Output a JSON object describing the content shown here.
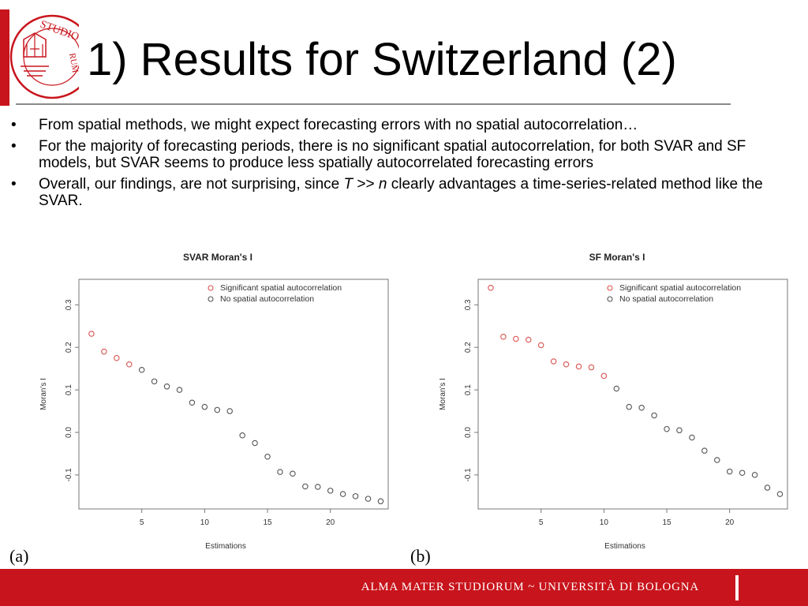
{
  "slide": {
    "title": "1) Results for Switzerland (2)",
    "bullets": [
      {
        "text": "From spatial methods, we might expect forecasting errors with no spatial autocorrelation…"
      },
      {
        "text": "For the majority of forecasting periods, there is no significant spatial autocorrelation, for both SVAR and SF models, but SVAR seems to produce less spatially autocorrelated forecasting errors"
      },
      {
        "pre": "Overall, our findings, are not surprising, since ",
        "t": "T",
        "op": " >> ",
        "n": "n",
        "post": " clearly advantages a time-series-related method like the SVAR."
      }
    ],
    "bullet_symbol": "•"
  },
  "logo": {
    "lettering": "SIGILLUM DI BOLOGNA STUDIORUM",
    "colors": {
      "primary": "#c8141c"
    }
  },
  "footer": {
    "text": "ALMA MATER STUDIORUM ~ UNIVERSITÀ DI BOLOGNA",
    "color": "#c8141c"
  },
  "panel_labels": [
    "(a)",
    "(b)"
  ],
  "chart_data": [
    {
      "type": "scatter",
      "title": "SVAR Moran's I",
      "xlabel": "Estimations",
      "ylabel": "Moran's I",
      "xlim": [
        0,
        24.6
      ],
      "ylim": [
        -0.18,
        0.36
      ],
      "xticks": [
        5,
        10,
        15,
        20
      ],
      "yticks": [
        -0.1,
        0.0,
        0.1,
        0.2,
        0.3
      ],
      "grid": false,
      "legend_position": "top-right",
      "series": [
        {
          "name": "Significant spatial autocorrelation",
          "color": "#d9534f",
          "x": [
            1,
            2,
            3,
            4
          ],
          "y": [
            0.232,
            0.19,
            0.175,
            0.16
          ]
        },
        {
          "name": "No spatial autocorrelation",
          "color": "#555555",
          "x": [
            5,
            6,
            7,
            8,
            9,
            10,
            11,
            12,
            13,
            14,
            15,
            16,
            17,
            18,
            19,
            20,
            21,
            22,
            23,
            24
          ],
          "y": [
            0.147,
            0.12,
            0.108,
            0.1,
            0.07,
            0.06,
            0.053,
            0.05,
            -0.007,
            -0.025,
            -0.057,
            -0.093,
            -0.097,
            -0.127,
            -0.128,
            -0.137,
            -0.145,
            -0.15,
            -0.156,
            -0.162
          ]
        }
      ]
    },
    {
      "type": "scatter",
      "title": "SF Moran's I",
      "xlabel": "Estimations",
      "ylabel": "Moran's I",
      "xlim": [
        0,
        24.6
      ],
      "ylim": [
        -0.18,
        0.36
      ],
      "xticks": [
        5,
        10,
        15,
        20
      ],
      "yticks": [
        -0.1,
        0.0,
        0.1,
        0.2,
        0.3
      ],
      "grid": false,
      "legend_position": "top-right",
      "series": [
        {
          "name": "Significant spatial autocorrelation",
          "color": "#d9534f",
          "x": [
            1,
            2,
            3,
            4,
            5,
            6,
            7,
            8,
            9,
            10
          ],
          "y": [
            0.34,
            0.225,
            0.22,
            0.218,
            0.205,
            0.167,
            0.16,
            0.155,
            0.153,
            0.133
          ]
        },
        {
          "name": "No spatial autocorrelation",
          "color": "#555555",
          "x": [
            11,
            12,
            13,
            14,
            15,
            16,
            17,
            18,
            19,
            20,
            21,
            22,
            23,
            24
          ],
          "y": [
            0.103,
            0.06,
            0.058,
            0.04,
            0.008,
            0.005,
            -0.012,
            -0.043,
            -0.065,
            -0.092,
            -0.095,
            -0.1,
            -0.13,
            -0.145
          ]
        }
      ]
    }
  ]
}
